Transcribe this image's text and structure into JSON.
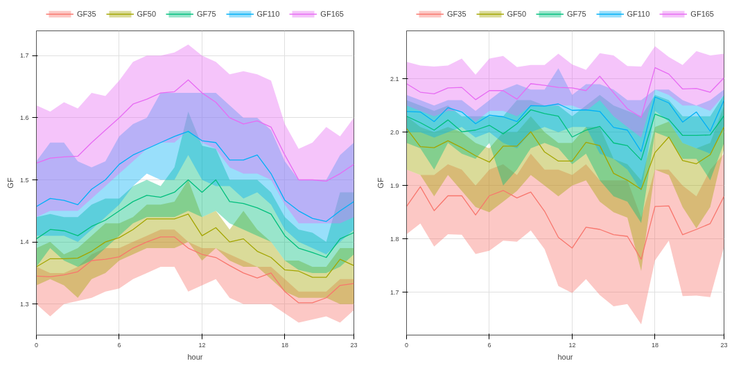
{
  "chart_data": [
    {
      "type": "line",
      "xlabel": "hour",
      "ylabel": "GF",
      "legend": "top",
      "grid": true,
      "x": [
        0,
        1,
        2,
        3,
        4,
        5,
        6,
        7,
        8,
        9,
        10,
        11,
        12,
        13,
        14,
        15,
        16,
        17,
        18,
        19,
        20,
        21,
        22,
        23
      ],
      "xlim": [
        0,
        23
      ],
      "xticks": [
        0,
        6,
        12,
        18,
        23
      ],
      "ylim": [
        1.25,
        1.74
      ],
      "yticks": [
        1.3,
        1.4,
        1.5,
        1.6,
        1.7
      ],
      "series": [
        {
          "name": "GF35",
          "color": "#f8766d",
          "values": [
            1.345,
            1.344,
            1.347,
            1.352,
            1.37,
            1.372,
            1.376,
            1.39,
            1.4,
            1.408,
            1.408,
            1.39,
            1.38,
            1.375,
            1.362,
            1.35,
            1.342,
            1.35,
            1.32,
            1.302,
            1.302,
            1.31,
            1.33,
            1.333
          ],
          "lower": [
            1.3,
            1.28,
            1.3,
            1.305,
            1.31,
            1.32,
            1.325,
            1.34,
            1.35,
            1.36,
            1.36,
            1.32,
            1.33,
            1.34,
            1.31,
            1.3,
            1.3,
            1.3,
            1.285,
            1.27,
            1.275,
            1.28,
            1.27,
            1.29
          ],
          "upper": [
            1.36,
            1.35,
            1.35,
            1.36,
            1.38,
            1.39,
            1.39,
            1.4,
            1.41,
            1.42,
            1.42,
            1.4,
            1.39,
            1.39,
            1.38,
            1.37,
            1.36,
            1.36,
            1.34,
            1.32,
            1.32,
            1.32,
            1.34,
            1.34
          ]
        },
        {
          "name": "GF50",
          "color": "#a3a500",
          "values": [
            1.36,
            1.373,
            1.373,
            1.374,
            1.385,
            1.4,
            1.407,
            1.42,
            1.437,
            1.437,
            1.437,
            1.445,
            1.41,
            1.423,
            1.4,
            1.405,
            1.385,
            1.375,
            1.355,
            1.353,
            1.343,
            1.343,
            1.372,
            1.362
          ],
          "lower": [
            1.33,
            1.34,
            1.33,
            1.31,
            1.34,
            1.35,
            1.37,
            1.38,
            1.39,
            1.39,
            1.39,
            1.4,
            1.37,
            1.39,
            1.37,
            1.36,
            1.36,
            1.34,
            1.32,
            1.31,
            1.31,
            1.31,
            1.3,
            1.3
          ],
          "upper": [
            1.39,
            1.4,
            1.38,
            1.39,
            1.41,
            1.43,
            1.43,
            1.44,
            1.46,
            1.46,
            1.465,
            1.5,
            1.44,
            1.45,
            1.42,
            1.45,
            1.42,
            1.4,
            1.37,
            1.37,
            1.36,
            1.36,
            1.39,
            1.39
          ]
        },
        {
          "name": "GF75",
          "color": "#00bf7d",
          "values": [
            1.405,
            1.42,
            1.418,
            1.41,
            1.425,
            1.435,
            1.45,
            1.465,
            1.475,
            1.472,
            1.48,
            1.5,
            1.48,
            1.5,
            1.465,
            1.462,
            1.455,
            1.445,
            1.41,
            1.39,
            1.383,
            1.375,
            1.405,
            1.415
          ],
          "lower": [
            1.36,
            1.39,
            1.37,
            1.36,
            1.37,
            1.39,
            1.41,
            1.43,
            1.44,
            1.44,
            1.44,
            1.45,
            1.44,
            1.45,
            1.43,
            1.42,
            1.41,
            1.4,
            1.37,
            1.355,
            1.35,
            1.35,
            1.36,
            1.38
          ],
          "upper": [
            1.44,
            1.445,
            1.44,
            1.44,
            1.46,
            1.47,
            1.47,
            1.49,
            1.5,
            1.49,
            1.52,
            1.61,
            1.555,
            1.55,
            1.5,
            1.5,
            1.5,
            1.48,
            1.44,
            1.42,
            1.415,
            1.4,
            1.48,
            1.48
          ]
        },
        {
          "name": "GF110",
          "color": "#00b0f6",
          "values": [
            1.457,
            1.47,
            1.467,
            1.46,
            1.485,
            1.5,
            1.525,
            1.54,
            1.55,
            1.56,
            1.57,
            1.578,
            1.563,
            1.56,
            1.532,
            1.532,
            1.54,
            1.51,
            1.467,
            1.45,
            1.438,
            1.433,
            1.45,
            1.465
          ],
          "lower": [
            1.41,
            1.41,
            1.41,
            1.4,
            1.42,
            1.44,
            1.46,
            1.49,
            1.51,
            1.5,
            1.5,
            1.54,
            1.5,
            1.49,
            1.49,
            1.47,
            1.48,
            1.46,
            1.42,
            1.4,
            1.39,
            1.38,
            1.4,
            1.42
          ],
          "upper": [
            1.53,
            1.56,
            1.56,
            1.53,
            1.52,
            1.53,
            1.57,
            1.59,
            1.6,
            1.64,
            1.64,
            1.64,
            1.64,
            1.64,
            1.62,
            1.6,
            1.6,
            1.58,
            1.53,
            1.5,
            1.5,
            1.5,
            1.54,
            1.56
          ]
        },
        {
          "name": "GF165",
          "color": "#e76bf3",
          "values": [
            1.527,
            1.535,
            1.537,
            1.538,
            1.56,
            1.58,
            1.6,
            1.622,
            1.63,
            1.64,
            1.642,
            1.661,
            1.64,
            1.625,
            1.6,
            1.59,
            1.595,
            1.585,
            1.54,
            1.5,
            1.5,
            1.498,
            1.51,
            1.525
          ],
          "lower": [
            1.44,
            1.45,
            1.45,
            1.45,
            1.47,
            1.49,
            1.51,
            1.53,
            1.55,
            1.56,
            1.56,
            1.58,
            1.56,
            1.55,
            1.52,
            1.51,
            1.51,
            1.5,
            1.46,
            1.43,
            1.43,
            1.43,
            1.43,
            1.44
          ],
          "upper": [
            1.62,
            1.61,
            1.625,
            1.615,
            1.64,
            1.635,
            1.66,
            1.69,
            1.7,
            1.7,
            1.705,
            1.718,
            1.7,
            1.69,
            1.67,
            1.675,
            1.67,
            1.66,
            1.59,
            1.55,
            1.56,
            1.585,
            1.57,
            1.6
          ]
        }
      ]
    },
    {
      "type": "line",
      "xlabel": "hour",
      "ylabel": "GF",
      "legend": "top",
      "grid": true,
      "x": [
        0,
        1,
        2,
        3,
        4,
        5,
        6,
        7,
        8,
        9,
        10,
        11,
        12,
        13,
        14,
        15,
        16,
        17,
        18,
        19,
        20,
        21,
        22,
        23
      ],
      "xlim": [
        0,
        23
      ],
      "xticks": [
        0,
        6,
        12,
        18,
        23
      ],
      "ylim": [
        1.62,
        2.19
      ],
      "yticks": [
        1.7,
        1.8,
        1.9,
        {
          "value": 2.0,
          "label": "2.0"
        },
        2.1
      ],
      "series": [
        {
          "name": "GF35",
          "color": "#f8766d",
          "values": [
            1.861,
            1.898,
            1.853,
            1.881,
            1.881,
            1.845,
            1.881,
            1.891,
            1.877,
            1.888,
            1.852,
            1.803,
            1.783,
            1.822,
            1.818,
            1.808,
            1.805,
            1.762,
            1.861,
            1.862,
            1.808,
            1.818,
            1.829,
            1.88
          ],
          "lower": [
            1.809,
            1.829,
            1.786,
            1.809,
            1.808,
            1.772,
            1.778,
            1.797,
            1.795,
            1.816,
            1.781,
            1.712,
            1.699,
            1.725,
            1.695,
            1.674,
            1.678,
            1.64,
            1.76,
            1.797,
            1.693,
            1.694,
            1.691,
            1.785
          ],
          "upper": [
            1.93,
            1.92,
            1.92,
            1.94,
            1.93,
            1.9,
            1.93,
            1.94,
            1.92,
            1.96,
            1.93,
            1.93,
            1.92,
            1.94,
            1.91,
            1.91,
            1.91,
            1.84,
            1.93,
            1.93,
            1.9,
            1.88,
            1.93,
            1.96
          ]
        },
        {
          "name": "GF50",
          "color": "#a3a500",
          "values": [
            2.007,
            1.973,
            1.971,
            1.984,
            1.971,
            1.956,
            1.944,
            1.974,
            1.974,
            2.001,
            1.963,
            1.946,
            1.946,
            1.981,
            1.975,
            1.923,
            1.91,
            1.893,
            1.962,
            1.991,
            1.947,
            1.941,
            1.958,
            2.01
          ],
          "lower": [
            1.93,
            1.92,
            1.88,
            1.92,
            1.89,
            1.86,
            1.85,
            1.87,
            1.89,
            1.92,
            1.9,
            1.88,
            1.9,
            1.91,
            1.87,
            1.85,
            1.84,
            1.74,
            1.93,
            1.92,
            1.86,
            1.82,
            1.86,
            1.97
          ],
          "upper": [
            2.03,
            2.01,
            2.0,
            2.01,
            2.0,
            1.98,
            1.97,
            2.0,
            2.0,
            2.03,
            2.0,
            1.98,
            1.98,
            2.01,
            2.01,
            1.95,
            1.94,
            1.91,
            2.01,
            2.02,
            1.98,
            1.97,
            1.98,
            2.05
          ]
        },
        {
          "name": "GF75",
          "color": "#00bf7d",
          "values": [
            2.03,
            2.018,
            2.004,
            2.023,
            2.001,
            2.004,
            2.013,
            1.997,
            2.016,
            2.042,
            2.035,
            2.03,
            1.991,
            2.004,
            2.011,
            1.98,
            1.975,
            1.948,
            2.034,
            2.024,
            1.994,
            1.994,
            1.995,
            2.031
          ],
          "lower": [
            1.98,
            1.97,
            1.93,
            1.98,
            1.96,
            1.95,
            1.98,
            1.9,
            1.93,
            1.97,
            1.98,
            1.97,
            1.94,
            1.96,
            1.91,
            1.88,
            1.87,
            1.83,
            2.0,
            1.99,
            1.95,
            1.95,
            1.91,
            1.98
          ],
          "upper": [
            2.06,
            2.05,
            2.04,
            2.05,
            2.03,
            2.03,
            2.03,
            2.03,
            2.06,
            2.06,
            2.05,
            2.05,
            2.03,
            2.05,
            2.07,
            2.05,
            2.04,
            2.03,
            2.07,
            2.06,
            2.03,
            2.03,
            2.03,
            2.07
          ]
        },
        {
          "name": "GF110",
          "color": "#00b0f6",
          "values": [
            2.039,
            2.038,
            2.02,
            2.046,
            2.038,
            2.016,
            2.032,
            2.029,
            2.02,
            2.05,
            2.049,
            2.053,
            2.041,
            2.042,
            2.039,
            2.009,
            2.004,
            1.964,
            2.066,
            2.055,
            2.019,
            2.038,
            2.002,
            2.06
          ],
          "lower": [
            2.0,
            2.0,
            1.99,
            2.0,
            2.01,
            1.99,
            2.0,
            1.98,
            1.97,
            2.0,
            2.01,
            2.0,
            2.01,
            2.01,
            1.96,
            1.95,
            1.93,
            1.89,
            2.04,
            2.02,
            1.98,
            1.97,
            1.96,
            2.01
          ],
          "upper": [
            2.07,
            2.06,
            2.05,
            2.06,
            2.06,
            2.04,
            2.06,
            2.08,
            2.09,
            2.08,
            2.08,
            2.12,
            2.07,
            2.09,
            2.09,
            2.08,
            2.06,
            2.06,
            2.08,
            2.08,
            2.06,
            2.05,
            2.06,
            2.08
          ]
        },
        {
          "name": "GF165",
          "color": "#e76bf3",
          "values": [
            2.091,
            2.075,
            2.072,
            2.083,
            2.084,
            2.061,
            2.078,
            2.078,
            2.062,
            2.091,
            2.088,
            2.084,
            2.083,
            2.078,
            2.105,
            2.074,
            2.044,
            2.028,
            2.121,
            2.109,
            2.081,
            2.082,
            2.075,
            2.102
          ],
          "lower": [
            2.05,
            2.04,
            2.03,
            2.04,
            2.04,
            2.02,
            2.04,
            2.04,
            2.03,
            2.05,
            2.05,
            2.05,
            2.05,
            2.04,
            2.06,
            2.03,
            2.01,
            1.99,
            2.08,
            2.07,
            2.05,
            2.05,
            2.04,
            2.07
          ],
          "upper": [
            2.132,
            2.125,
            2.123,
            2.125,
            2.138,
            2.108,
            2.138,
            2.143,
            2.122,
            2.126,
            2.126,
            2.147,
            2.127,
            2.117,
            2.148,
            2.144,
            2.124,
            2.123,
            2.161,
            2.141,
            2.126,
            2.152,
            2.144,
            2.147
          ]
        }
      ]
    }
  ]
}
